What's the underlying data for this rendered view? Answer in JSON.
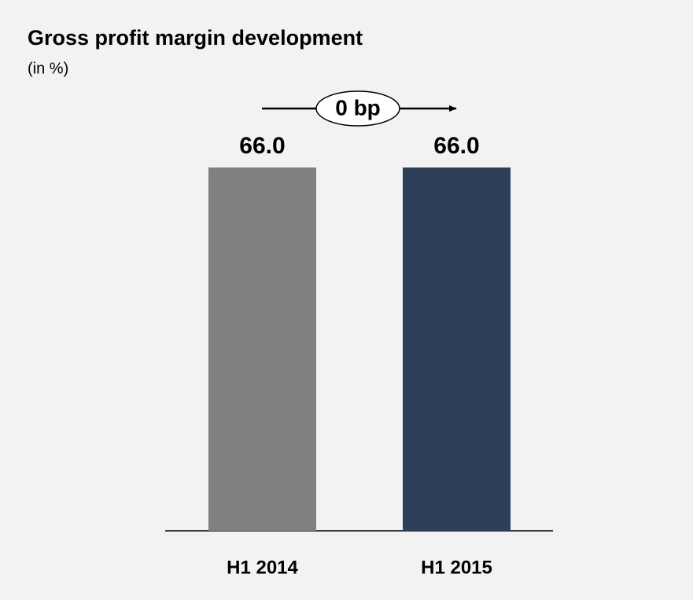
{
  "chart_data": {
    "type": "bar",
    "title": "Gross profit margin development",
    "subtitle": "(in %)",
    "categories": [
      "H1 2014",
      "H1 2015"
    ],
    "values": [
      66.0,
      66.0
    ],
    "value_labels": [
      "66.0",
      "66.0"
    ],
    "colors": [
      "#808080",
      "#2e3f5a"
    ],
    "annotation": "0 bp"
  }
}
